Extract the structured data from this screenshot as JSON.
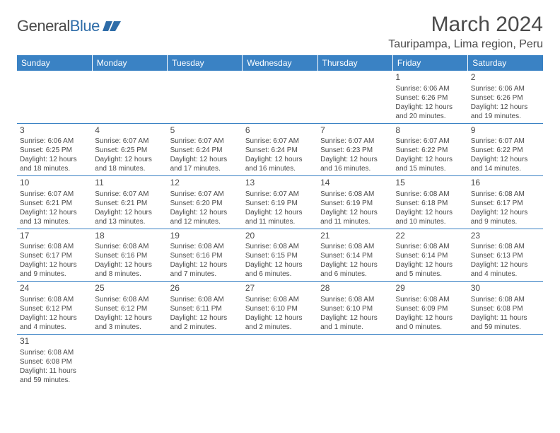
{
  "logo": {
    "general": "General",
    "blue": "Blue"
  },
  "title": {
    "month": "March 2024",
    "location": "Tauripampa, Lima region, Peru"
  },
  "colors": {
    "header_bg": "#3a82c4",
    "header_fg": "#ffffff",
    "text": "#4a4a4a",
    "rule": "#3a82c4"
  },
  "weekdays": [
    "Sunday",
    "Monday",
    "Tuesday",
    "Wednesday",
    "Thursday",
    "Friday",
    "Saturday"
  ],
  "weeks": [
    [
      null,
      null,
      null,
      null,
      null,
      {
        "n": "1",
        "sr": "Sunrise: 6:06 AM",
        "ss": "Sunset: 6:26 PM",
        "dl": "Daylight: 12 hours and 20 minutes."
      },
      {
        "n": "2",
        "sr": "Sunrise: 6:06 AM",
        "ss": "Sunset: 6:26 PM",
        "dl": "Daylight: 12 hours and 19 minutes."
      }
    ],
    [
      {
        "n": "3",
        "sr": "Sunrise: 6:06 AM",
        "ss": "Sunset: 6:25 PM",
        "dl": "Daylight: 12 hours and 18 minutes."
      },
      {
        "n": "4",
        "sr": "Sunrise: 6:07 AM",
        "ss": "Sunset: 6:25 PM",
        "dl": "Daylight: 12 hours and 18 minutes."
      },
      {
        "n": "5",
        "sr": "Sunrise: 6:07 AM",
        "ss": "Sunset: 6:24 PM",
        "dl": "Daylight: 12 hours and 17 minutes."
      },
      {
        "n": "6",
        "sr": "Sunrise: 6:07 AM",
        "ss": "Sunset: 6:24 PM",
        "dl": "Daylight: 12 hours and 16 minutes."
      },
      {
        "n": "7",
        "sr": "Sunrise: 6:07 AM",
        "ss": "Sunset: 6:23 PM",
        "dl": "Daylight: 12 hours and 16 minutes."
      },
      {
        "n": "8",
        "sr": "Sunrise: 6:07 AM",
        "ss": "Sunset: 6:22 PM",
        "dl": "Daylight: 12 hours and 15 minutes."
      },
      {
        "n": "9",
        "sr": "Sunrise: 6:07 AM",
        "ss": "Sunset: 6:22 PM",
        "dl": "Daylight: 12 hours and 14 minutes."
      }
    ],
    [
      {
        "n": "10",
        "sr": "Sunrise: 6:07 AM",
        "ss": "Sunset: 6:21 PM",
        "dl": "Daylight: 12 hours and 13 minutes."
      },
      {
        "n": "11",
        "sr": "Sunrise: 6:07 AM",
        "ss": "Sunset: 6:21 PM",
        "dl": "Daylight: 12 hours and 13 minutes."
      },
      {
        "n": "12",
        "sr": "Sunrise: 6:07 AM",
        "ss": "Sunset: 6:20 PM",
        "dl": "Daylight: 12 hours and 12 minutes."
      },
      {
        "n": "13",
        "sr": "Sunrise: 6:07 AM",
        "ss": "Sunset: 6:19 PM",
        "dl": "Daylight: 12 hours and 11 minutes."
      },
      {
        "n": "14",
        "sr": "Sunrise: 6:08 AM",
        "ss": "Sunset: 6:19 PM",
        "dl": "Daylight: 12 hours and 11 minutes."
      },
      {
        "n": "15",
        "sr": "Sunrise: 6:08 AM",
        "ss": "Sunset: 6:18 PM",
        "dl": "Daylight: 12 hours and 10 minutes."
      },
      {
        "n": "16",
        "sr": "Sunrise: 6:08 AM",
        "ss": "Sunset: 6:17 PM",
        "dl": "Daylight: 12 hours and 9 minutes."
      }
    ],
    [
      {
        "n": "17",
        "sr": "Sunrise: 6:08 AM",
        "ss": "Sunset: 6:17 PM",
        "dl": "Daylight: 12 hours and 9 minutes."
      },
      {
        "n": "18",
        "sr": "Sunrise: 6:08 AM",
        "ss": "Sunset: 6:16 PM",
        "dl": "Daylight: 12 hours and 8 minutes."
      },
      {
        "n": "19",
        "sr": "Sunrise: 6:08 AM",
        "ss": "Sunset: 6:16 PM",
        "dl": "Daylight: 12 hours and 7 minutes."
      },
      {
        "n": "20",
        "sr": "Sunrise: 6:08 AM",
        "ss": "Sunset: 6:15 PM",
        "dl": "Daylight: 12 hours and 6 minutes."
      },
      {
        "n": "21",
        "sr": "Sunrise: 6:08 AM",
        "ss": "Sunset: 6:14 PM",
        "dl": "Daylight: 12 hours and 6 minutes."
      },
      {
        "n": "22",
        "sr": "Sunrise: 6:08 AM",
        "ss": "Sunset: 6:14 PM",
        "dl": "Daylight: 12 hours and 5 minutes."
      },
      {
        "n": "23",
        "sr": "Sunrise: 6:08 AM",
        "ss": "Sunset: 6:13 PM",
        "dl": "Daylight: 12 hours and 4 minutes."
      }
    ],
    [
      {
        "n": "24",
        "sr": "Sunrise: 6:08 AM",
        "ss": "Sunset: 6:12 PM",
        "dl": "Daylight: 12 hours and 4 minutes."
      },
      {
        "n": "25",
        "sr": "Sunrise: 6:08 AM",
        "ss": "Sunset: 6:12 PM",
        "dl": "Daylight: 12 hours and 3 minutes."
      },
      {
        "n": "26",
        "sr": "Sunrise: 6:08 AM",
        "ss": "Sunset: 6:11 PM",
        "dl": "Daylight: 12 hours and 2 minutes."
      },
      {
        "n": "27",
        "sr": "Sunrise: 6:08 AM",
        "ss": "Sunset: 6:10 PM",
        "dl": "Daylight: 12 hours and 2 minutes."
      },
      {
        "n": "28",
        "sr": "Sunrise: 6:08 AM",
        "ss": "Sunset: 6:10 PM",
        "dl": "Daylight: 12 hours and 1 minute."
      },
      {
        "n": "29",
        "sr": "Sunrise: 6:08 AM",
        "ss": "Sunset: 6:09 PM",
        "dl": "Daylight: 12 hours and 0 minutes."
      },
      {
        "n": "30",
        "sr": "Sunrise: 6:08 AM",
        "ss": "Sunset: 6:08 PM",
        "dl": "Daylight: 11 hours and 59 minutes."
      }
    ],
    [
      {
        "n": "31",
        "sr": "Sunrise: 6:08 AM",
        "ss": "Sunset: 6:08 PM",
        "dl": "Daylight: 11 hours and 59 minutes."
      },
      null,
      null,
      null,
      null,
      null,
      null
    ]
  ]
}
